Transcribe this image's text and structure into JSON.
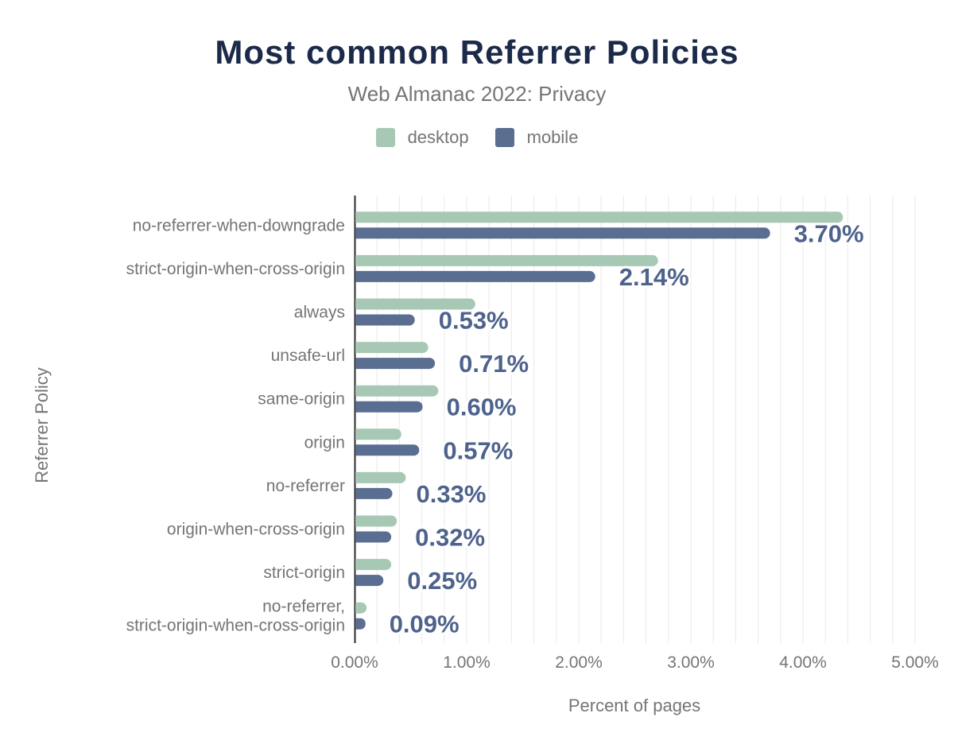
{
  "title": "Most common Referrer Policies",
  "subtitle": "Web Almanac 2022: Privacy",
  "colors": {
    "title": "#1c2a4a",
    "muted_text": "#757575",
    "value_label": "#4d628c",
    "axis_line": "#2b2b2b",
    "gridline": "#e9e9e9",
    "background": "#ffffff",
    "desktop_series": "#a7c8b4",
    "mobile_series": "#5a6e91"
  },
  "chart_data": {
    "type": "bar",
    "orientation": "horizontal",
    "title": "Most common Referrer Policies",
    "subtitle": "Web Almanac 2022: Privacy",
    "xlabel": "Percent of pages",
    "ylabel": "Referrer Policy",
    "xlim": [
      0,
      5
    ],
    "x_ticks": [
      "0.00%",
      "1.00%",
      "2.00%",
      "3.00%",
      "4.00%",
      "5.00%"
    ],
    "gridline_step_percent": 0.2,
    "grid": true,
    "legend_position": "top",
    "categories": [
      "no-referrer-when-downgrade",
      "strict-origin-when-cross-origin",
      "always",
      "unsafe-url",
      "same-origin",
      "origin",
      "no-referrer",
      "origin-when-cross-origin",
      "strict-origin",
      "no-referrer,\nstrict-origin-when-cross-origin"
    ],
    "series": [
      {
        "name": "desktop",
        "color": "#a7c8b4",
        "values": [
          4.35,
          2.7,
          1.07,
          0.65,
          0.74,
          0.41,
          0.45,
          0.37,
          0.32,
          0.1
        ]
      },
      {
        "name": "mobile",
        "color": "#5a6e91",
        "values": [
          3.7,
          2.14,
          0.53,
          0.71,
          0.6,
          0.57,
          0.33,
          0.32,
          0.25,
          0.09
        ]
      }
    ],
    "value_labels": [
      "3.70%",
      "2.14%",
      "0.53%",
      "0.71%",
      "0.60%",
      "0.57%",
      "0.33%",
      "0.32%",
      "0.25%",
      "0.09%"
    ]
  }
}
